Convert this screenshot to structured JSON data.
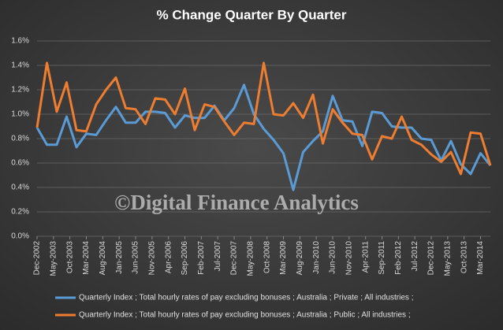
{
  "chart_data": {
    "type": "line",
    "title": "% Change  Quarter  By Quarter",
    "annotation": "©Digital Finance Analytics",
    "x": [
      0,
      3,
      6,
      9,
      12,
      15,
      18,
      21,
      24,
      27,
      30,
      33,
      36,
      39,
      42,
      45,
      48,
      51,
      54,
      57,
      60,
      63,
      66,
      69,
      72,
      75,
      78,
      81,
      84,
      87,
      90,
      93,
      96,
      99,
      102,
      105,
      108,
      111,
      114,
      117,
      120,
      123,
      126,
      129,
      132,
      135,
      138
    ],
    "xlim": [
      0,
      138
    ],
    "xticks": [
      {
        "value": 0,
        "label": "Dec-2002"
      },
      {
        "value": 5,
        "label": "May-2003"
      },
      {
        "value": 10,
        "label": "Oct-2003"
      },
      {
        "value": 15,
        "label": "Mar-2004"
      },
      {
        "value": 20,
        "label": "Aug-2004"
      },
      {
        "value": 25,
        "label": "Jan-2005"
      },
      {
        "value": 30,
        "label": "Jun-2005"
      },
      {
        "value": 35,
        "label": "Nov-2005"
      },
      {
        "value": 40,
        "label": "Apr-2006"
      },
      {
        "value": 45,
        "label": "Sep-2006"
      },
      {
        "value": 50,
        "label": "Feb-2007"
      },
      {
        "value": 55,
        "label": "Jul-2007"
      },
      {
        "value": 60,
        "label": "Dec-2007"
      },
      {
        "value": 65,
        "label": "May-2008"
      },
      {
        "value": 70,
        "label": "Oct-2008"
      },
      {
        "value": 75,
        "label": "Mar-2009"
      },
      {
        "value": 80,
        "label": "Aug-2009"
      },
      {
        "value": 85,
        "label": "Jan-2010"
      },
      {
        "value": 90,
        "label": "Jun-2010"
      },
      {
        "value": 95,
        "label": "Nov-2010"
      },
      {
        "value": 100,
        "label": "Apr-2011"
      },
      {
        "value": 105,
        "label": "Sep-2011"
      },
      {
        "value": 110,
        "label": "Feb-2012"
      },
      {
        "value": 115,
        "label": "Jul-2012"
      },
      {
        "value": 120,
        "label": "Dec-2012"
      },
      {
        "value": 125,
        "label": "May-2013"
      },
      {
        "value": 130,
        "label": "Oct-2013"
      },
      {
        "value": 135,
        "label": "Mar-2014"
      }
    ],
    "ylim": [
      0,
      1.6
    ],
    "yticks": [
      {
        "value": 0,
        "label": "0.0%"
      },
      {
        "value": 0.2,
        "label": "0.2%"
      },
      {
        "value": 0.4,
        "label": "0.4%"
      },
      {
        "value": 0.6,
        "label": "0.6%"
      },
      {
        "value": 0.8,
        "label": "0.8%"
      },
      {
        "value": 1.0,
        "label": "1.0%"
      },
      {
        "value": 1.2,
        "label": "1.2%"
      },
      {
        "value": 1.4,
        "label": "1.4%"
      },
      {
        "value": 1.6,
        "label": "1.6%"
      }
    ],
    "grid": true,
    "legend": "bottom",
    "series": [
      {
        "name": "Quarterly Index ;  Total hourly rates of pay excluding bonuses ;  Australia ;  Private ;  All industries ;",
        "color": "#5b9bd5",
        "values": [
          0.89,
          0.75,
          0.75,
          0.98,
          0.73,
          0.84,
          0.83,
          0.95,
          1.06,
          0.93,
          0.93,
          1.02,
          1.02,
          1.01,
          0.89,
          0.99,
          0.97,
          0.97,
          1.07,
          0.95,
          1.05,
          1.24,
          1.0,
          0.88,
          0.79,
          0.68,
          0.38,
          0.69,
          0.78,
          0.86,
          1.15,
          0.95,
          0.94,
          0.74,
          1.02,
          1.01,
          0.9,
          0.89,
          0.89,
          0.8,
          0.79,
          0.62,
          0.78,
          0.59,
          0.51,
          0.68,
          0.58
        ]
      },
      {
        "name": "Quarterly Index ;  Total hourly rates of pay excluding bonuses ;  Australia ;  Public ;  All industries ;",
        "color": "#ed7d31",
        "values": [
          0.89,
          1.42,
          1.02,
          1.26,
          0.87,
          0.86,
          1.08,
          1.2,
          1.3,
          1.05,
          1.04,
          0.92,
          1.13,
          1.12,
          1.0,
          1.21,
          0.87,
          1.08,
          1.06,
          0.94,
          0.83,
          0.93,
          0.92,
          1.42,
          1.0,
          0.99,
          1.09,
          0.97,
          1.16,
          0.76,
          1.04,
          0.93,
          0.84,
          0.83,
          0.63,
          0.82,
          0.8,
          0.98,
          0.79,
          0.75,
          0.67,
          0.61,
          0.69,
          0.51,
          0.85,
          0.84,
          0.58
        ]
      }
    ]
  }
}
